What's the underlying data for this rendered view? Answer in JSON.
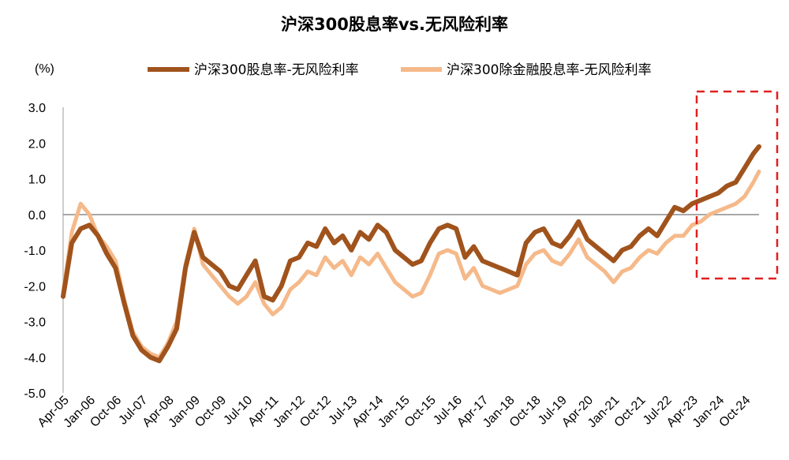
{
  "chart_data": {
    "type": "line",
    "title": "沪深300股息率vs.无风险利率",
    "unit_label": "(%)",
    "ylim": [
      -5.0,
      3.0
    ],
    "yticks": [
      "3.0",
      "2.0",
      "1.0",
      "0.0",
      "-1.0",
      "-2.0",
      "-3.0",
      "-4.0",
      "-5.0"
    ],
    "x_tick_labels": [
      "Apr-05",
      "Jan-06",
      "Oct-06",
      "Jul-07",
      "Apr-08",
      "Jan-09",
      "Oct-09",
      "Jul-10",
      "Apr-11",
      "Jan-12",
      "Oct-12",
      "Jul-13",
      "Apr-14",
      "Jan-15",
      "Oct-15",
      "Jul-16",
      "Apr-17",
      "Jan-18",
      "Oct-18",
      "Jul-19",
      "Apr-20",
      "Jan-21",
      "Oct-21",
      "Jul-22",
      "Apr-23",
      "Jan-24",
      "Oct-24"
    ],
    "legend_position": "top-center",
    "highlight": "dashed red box around Apr-23 to end",
    "series": [
      {
        "name": "沪深300股息率-无风险利率",
        "color": "#a0531c",
        "x": [
          "2005-04",
          "2005-07",
          "2005-10",
          "2006-01",
          "2006-04",
          "2006-07",
          "2006-10",
          "2007-01",
          "2007-04",
          "2007-07",
          "2007-10",
          "2008-01",
          "2008-04",
          "2008-07",
          "2008-10",
          "2009-01",
          "2009-04",
          "2009-07",
          "2009-10",
          "2010-01",
          "2010-04",
          "2010-07",
          "2010-10",
          "2011-01",
          "2011-04",
          "2011-07",
          "2011-10",
          "2012-01",
          "2012-04",
          "2012-07",
          "2012-10",
          "2013-01",
          "2013-04",
          "2013-07",
          "2013-10",
          "2014-01",
          "2014-04",
          "2014-07",
          "2014-10",
          "2015-01",
          "2015-04",
          "2015-07",
          "2015-10",
          "2016-01",
          "2016-04",
          "2016-07",
          "2016-10",
          "2017-01",
          "2017-04",
          "2017-07",
          "2017-10",
          "2018-01",
          "2018-04",
          "2018-07",
          "2018-10",
          "2019-01",
          "2019-04",
          "2019-07",
          "2019-10",
          "2020-01",
          "2020-04",
          "2020-07",
          "2020-10",
          "2021-01",
          "2021-04",
          "2021-07",
          "2021-10",
          "2022-01",
          "2022-04",
          "2022-07",
          "2022-10",
          "2023-01",
          "2023-04",
          "2023-07",
          "2023-10",
          "2024-01",
          "2024-04",
          "2024-07",
          "2024-10",
          "2025-01",
          "2025-03"
        ],
        "values": [
          -2.3,
          -0.8,
          -0.4,
          -0.3,
          -0.6,
          -1.1,
          -1.5,
          -2.5,
          -3.4,
          -3.8,
          -4.0,
          -4.1,
          -3.7,
          -3.2,
          -1.5,
          -0.5,
          -1.2,
          -1.4,
          -1.6,
          -2.0,
          -2.1,
          -1.7,
          -1.3,
          -2.3,
          -2.4,
          -2.0,
          -1.3,
          -1.2,
          -0.8,
          -0.9,
          -0.4,
          -0.8,
          -0.6,
          -1.0,
          -0.5,
          -0.7,
          -0.3,
          -0.5,
          -1.0,
          -1.2,
          -1.4,
          -1.3,
          -0.8,
          -0.4,
          -0.3,
          -0.4,
          -1.2,
          -0.9,
          -1.3,
          -1.4,
          -1.5,
          -1.6,
          -1.7,
          -0.8,
          -0.5,
          -0.4,
          -0.8,
          -0.9,
          -0.6,
          -0.2,
          -0.7,
          -0.9,
          -1.1,
          -1.3,
          -1.0,
          -0.9,
          -0.6,
          -0.4,
          -0.6,
          -0.2,
          0.2,
          0.1,
          0.3,
          0.4,
          0.5,
          0.6,
          0.8,
          0.9,
          1.3,
          1.7,
          1.9
        ]
      },
      {
        "name": "沪深300除金融股息率-无风险利率",
        "color": "#f5b98a",
        "x": [
          "2005-04",
          "2005-07",
          "2005-10",
          "2006-01",
          "2006-04",
          "2006-07",
          "2006-10",
          "2007-01",
          "2007-04",
          "2007-07",
          "2007-10",
          "2008-01",
          "2008-04",
          "2008-07",
          "2008-10",
          "2009-01",
          "2009-04",
          "2009-07",
          "2009-10",
          "2010-01",
          "2010-04",
          "2010-07",
          "2010-10",
          "2011-01",
          "2011-04",
          "2011-07",
          "2011-10",
          "2012-01",
          "2012-04",
          "2012-07",
          "2012-10",
          "2013-01",
          "2013-04",
          "2013-07",
          "2013-10",
          "2014-01",
          "2014-04",
          "2014-07",
          "2014-10",
          "2015-01",
          "2015-04",
          "2015-07",
          "2015-10",
          "2016-01",
          "2016-04",
          "2016-07",
          "2016-10",
          "2017-01",
          "2017-04",
          "2017-07",
          "2017-10",
          "2018-01",
          "2018-04",
          "2018-07",
          "2018-10",
          "2019-01",
          "2019-04",
          "2019-07",
          "2019-10",
          "2020-01",
          "2020-04",
          "2020-07",
          "2020-10",
          "2021-01",
          "2021-04",
          "2021-07",
          "2021-10",
          "2022-01",
          "2022-04",
          "2022-07",
          "2022-10",
          "2023-01",
          "2023-04",
          "2023-07",
          "2023-10",
          "2024-01",
          "2024-04",
          "2024-07",
          "2024-10",
          "2025-01",
          "2025-03"
        ],
        "values": [
          -2.2,
          -0.5,
          0.3,
          0.0,
          -0.6,
          -0.9,
          -1.3,
          -2.4,
          -3.3,
          -3.7,
          -3.9,
          -4.0,
          -3.6,
          -3.0,
          -1.4,
          -0.4,
          -1.4,
          -1.7,
          -2.0,
          -2.3,
          -2.5,
          -2.3,
          -1.9,
          -2.5,
          -2.8,
          -2.6,
          -2.1,
          -1.9,
          -1.6,
          -1.7,
          -1.2,
          -1.5,
          -1.3,
          -1.7,
          -1.2,
          -1.4,
          -1.1,
          -1.5,
          -1.9,
          -2.1,
          -2.3,
          -2.2,
          -1.7,
          -1.1,
          -1.0,
          -1.1,
          -1.8,
          -1.5,
          -2.0,
          -2.1,
          -2.2,
          -2.1,
          -2.0,
          -1.4,
          -1.1,
          -1.0,
          -1.3,
          -1.4,
          -1.1,
          -0.7,
          -1.2,
          -1.4,
          -1.6,
          -1.9,
          -1.6,
          -1.5,
          -1.2,
          -1.0,
          -1.1,
          -0.8,
          -0.6,
          -0.6,
          -0.3,
          -0.2,
          0.0,
          0.1,
          0.2,
          0.3,
          0.5,
          0.9,
          1.2
        ]
      }
    ]
  }
}
